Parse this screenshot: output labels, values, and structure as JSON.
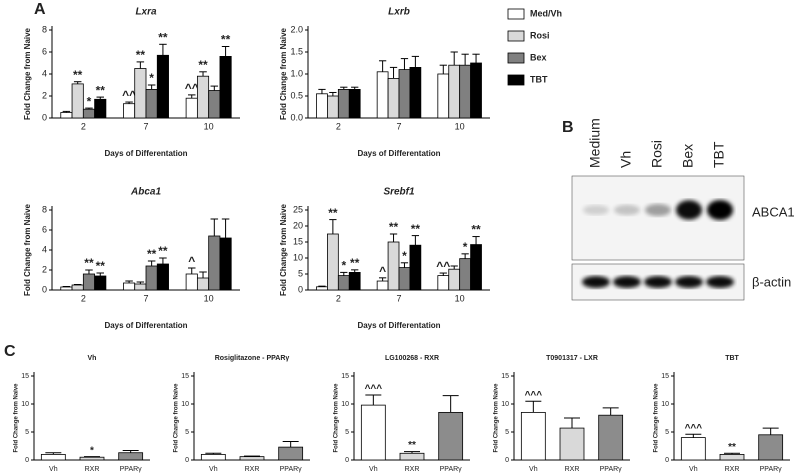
{
  "panel_labels": [
    "A",
    "B",
    "C"
  ],
  "blot": {
    "lanes": [
      "Medium",
      "Vh",
      "Rosi",
      "Bex",
      "TBT"
    ],
    "bands": [
      "ABCA1",
      "β-actin"
    ]
  },
  "chart_data": [
    {
      "type": "bar",
      "title": "Lxra",
      "x_label": "Days of Differentation",
      "y_label": "Fold Change from Naive",
      "categories": [
        "2",
        "7",
        "10"
      ],
      "ylim": [
        0,
        8
      ],
      "yticks": [
        0,
        2,
        4,
        6,
        8
      ],
      "series": [
        {
          "name": "Med/Vh",
          "color": "#ffffff",
          "values": [
            0.5,
            1.3,
            1.8
          ],
          "errors": [
            0.1,
            0.15,
            0.3
          ],
          "annotations": [
            null,
            "^^",
            "^^"
          ]
        },
        {
          "name": "Rosi",
          "color": "#d9d9d9",
          "values": [
            3.1,
            4.5,
            3.8
          ],
          "errors": [
            0.2,
            0.6,
            0.4
          ],
          "annotations": [
            "**",
            "**",
            "**"
          ]
        },
        {
          "name": "Bex",
          "color": "#808080",
          "values": [
            0.8,
            2.6,
            2.5
          ],
          "errors": [
            0.1,
            0.4,
            0.4
          ],
          "annotations": [
            "*",
            "*",
            null
          ]
        },
        {
          "name": "TBT",
          "color": "#000000",
          "values": [
            1.7,
            5.7,
            5.6
          ],
          "errors": [
            0.2,
            1.0,
            0.9
          ],
          "annotations": [
            "**",
            "**",
            "**"
          ]
        }
      ]
    },
    {
      "type": "bar",
      "title": "Lxrb",
      "x_label": "Days of Differentation",
      "y_label": "Fold Change from Naive",
      "categories": [
        "2",
        "7",
        "10"
      ],
      "ylim": [
        0,
        2
      ],
      "yticks": [
        {
          "value": 0,
          "label": "0.0"
        },
        {
          "value": 0.5,
          "label": "0.5"
        },
        {
          "value": 1,
          "label": "1.0"
        },
        {
          "value": 1.5,
          "label": "1.5"
        },
        {
          "value": 2,
          "label": "2.0"
        }
      ],
      "series": [
        {
          "color": "#ffffff",
          "values": [
            0.55,
            1.05,
            1.0
          ],
          "errors": [
            0.1,
            0.25,
            0.2
          ]
        },
        {
          "color": "#d9d9d9",
          "values": [
            0.5,
            0.9,
            1.2
          ],
          "errors": [
            0.08,
            0.25,
            0.3
          ]
        },
        {
          "color": "#808080",
          "values": [
            0.65,
            1.1,
            1.2
          ],
          "errors": [
            0.05,
            0.25,
            0.25
          ]
        },
        {
          "color": "#000000",
          "values": [
            0.65,
            1.15,
            1.25
          ],
          "errors": [
            0.05,
            0.25,
            0.2
          ]
        }
      ]
    },
    {
      "type": "bar",
      "title": "Abca1",
      "x_label": "Days of Differentation",
      "y_label": "Fold Change from Naive",
      "categories": [
        "2",
        "7",
        "10"
      ],
      "ylim": [
        0,
        8
      ],
      "yticks": [
        0,
        2,
        4,
        6,
        8
      ],
      "series": [
        {
          "color": "#ffffff",
          "values": [
            0.3,
            0.7,
            1.6
          ],
          "errors": [
            0.05,
            0.2,
            0.6
          ],
          "annotations": [
            null,
            null,
            "^"
          ]
        },
        {
          "color": "#d9d9d9",
          "values": [
            0.5,
            0.6,
            1.2
          ],
          "errors": [
            0.05,
            0.2,
            0.6
          ]
        },
        {
          "color": "#808080",
          "values": [
            1.6,
            2.4,
            5.4
          ],
          "errors": [
            0.4,
            0.5,
            1.7
          ],
          "annotations": [
            "**",
            "**",
            null
          ]
        },
        {
          "color": "#000000",
          "values": [
            1.4,
            2.6,
            5.2
          ],
          "errors": [
            0.3,
            0.6,
            1.9
          ],
          "annotations": [
            "**",
            "**",
            null
          ]
        }
      ]
    },
    {
      "type": "bar",
      "title": "Srebf1",
      "x_label": "Days of Differentation",
      "y_label": "Fold Change from Naive",
      "categories": [
        "2",
        "7",
        "10"
      ],
      "ylim": [
        0,
        25
      ],
      "yticks": [
        0,
        5,
        10,
        15,
        20,
        25
      ],
      "series": [
        {
          "color": "#ffffff",
          "values": [
            1.0,
            2.8,
            4.5
          ],
          "errors": [
            0.2,
            1.0,
            0.8
          ],
          "annotations": [
            null,
            "^",
            "^^"
          ]
        },
        {
          "color": "#d9d9d9",
          "values": [
            17.5,
            15.0,
            6.5
          ],
          "errors": [
            4.5,
            2.5,
            1.0
          ],
          "annotations": [
            "**",
            "**",
            null
          ]
        },
        {
          "color": "#808080",
          "values": [
            4.5,
            7.0,
            9.8
          ],
          "errors": [
            1.0,
            1.5,
            1.5
          ],
          "annotations": [
            "*",
            "*",
            "*"
          ]
        },
        {
          "color": "#000000",
          "values": [
            5.5,
            14.0,
            14.2
          ],
          "errors": [
            0.8,
            3.0,
            2.5
          ],
          "annotations": [
            "**",
            "**",
            "**"
          ]
        }
      ]
    },
    {
      "type": "bar",
      "title": "Vh",
      "y_label": "Fold Change from Naive",
      "categories": [
        "Vh",
        "RXR",
        "PPARγ"
      ],
      "ylim": [
        0,
        15
      ],
      "yticks": [
        0,
        5,
        10,
        15
      ],
      "colors": [
        "#ffffff",
        "#d9d9d9",
        "#8c8c8c"
      ],
      "values": [
        1.0,
        0.5,
        1.3
      ],
      "errors": [
        0.3,
        0.1,
        0.4
      ],
      "annotations": [
        null,
        "*",
        null
      ]
    },
    {
      "type": "bar",
      "title": "Rosiglitazone - PPARγ",
      "y_label": "Fold Change from Naive",
      "categories": [
        "Vh",
        "RXR",
        "PPARγ"
      ],
      "ylim": [
        0,
        15
      ],
      "yticks": [
        0,
        5,
        10,
        15
      ],
      "colors": [
        "#ffffff",
        "#d9d9d9",
        "#8c8c8c"
      ],
      "values": [
        1.0,
        0.6,
        2.3
      ],
      "errors": [
        0.2,
        0.1,
        1.0
      ]
    },
    {
      "type": "bar",
      "title": "LG100268 - RXR",
      "y_label": "Fold Change from Naive",
      "categories": [
        "Vh",
        "RXR",
        "PPARγ"
      ],
      "ylim": [
        0,
        15
      ],
      "yticks": [
        0,
        5,
        10,
        15
      ],
      "colors": [
        "#ffffff",
        "#d9d9d9",
        "#8c8c8c"
      ],
      "values": [
        9.8,
        1.2,
        8.5
      ],
      "errors": [
        1.8,
        0.3,
        3.0
      ],
      "annotations": [
        "^^^",
        "**",
        null
      ]
    },
    {
      "type": "bar",
      "title": "T0901317 - LXR",
      "y_label": "Fold Change from Naive",
      "categories": [
        "Vh",
        "RXR",
        "PPARγ"
      ],
      "ylim": [
        0,
        15
      ],
      "yticks": [
        0,
        5,
        10,
        15
      ],
      "colors": [
        "#ffffff",
        "#d9d9d9",
        "#8c8c8c"
      ],
      "values": [
        8.5,
        5.7,
        8.0
      ],
      "errors": [
        2.0,
        1.8,
        1.3
      ],
      "annotations": [
        "^^^",
        null,
        null
      ]
    },
    {
      "type": "bar",
      "title": "TBT",
      "y_label": "Fold Change from Naive",
      "categories": [
        "Vh",
        "RXR",
        "PPARγ"
      ],
      "ylim": [
        0,
        15
      ],
      "yticks": [
        0,
        5,
        10,
        15
      ],
      "colors": [
        "#ffffff",
        "#d9d9d9",
        "#8c8c8c"
      ],
      "values": [
        4.0,
        1.0,
        4.5
      ],
      "errors": [
        0.6,
        0.2,
        1.2
      ],
      "annotations": [
        "^^^",
        "**",
        null
      ]
    }
  ]
}
